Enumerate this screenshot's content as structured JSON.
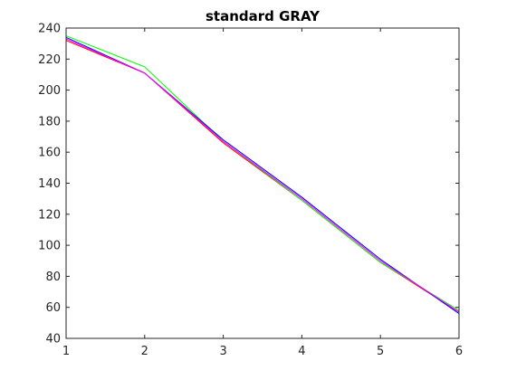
{
  "chart_data": {
    "type": "line",
    "title": "standard GRAY",
    "xlabel": "",
    "ylabel": "",
    "x": [
      1,
      2,
      3,
      4,
      5,
      6
    ],
    "xlim": [
      1,
      6
    ],
    "ylim": [
      40,
      240
    ],
    "xticks": [
      1,
      2,
      3,
      4,
      5,
      6
    ],
    "yticks": [
      40,
      60,
      80,
      100,
      120,
      140,
      160,
      180,
      200,
      220,
      240
    ],
    "grid": false,
    "legend": "none",
    "series": [
      {
        "color": "#ff0000",
        "values": [
          232,
          211,
          166,
          129,
          89,
          57
        ]
      },
      {
        "color": "#00ff00",
        "values": [
          235,
          215,
          167,
          129,
          89,
          58
        ]
      },
      {
        "color": "#0000ff",
        "values": [
          234,
          211,
          168,
          131,
          91,
          56
        ]
      },
      {
        "color": "#ff00ff",
        "values": [
          233,
          211,
          167,
          130,
          90,
          57
        ]
      }
    ]
  }
}
